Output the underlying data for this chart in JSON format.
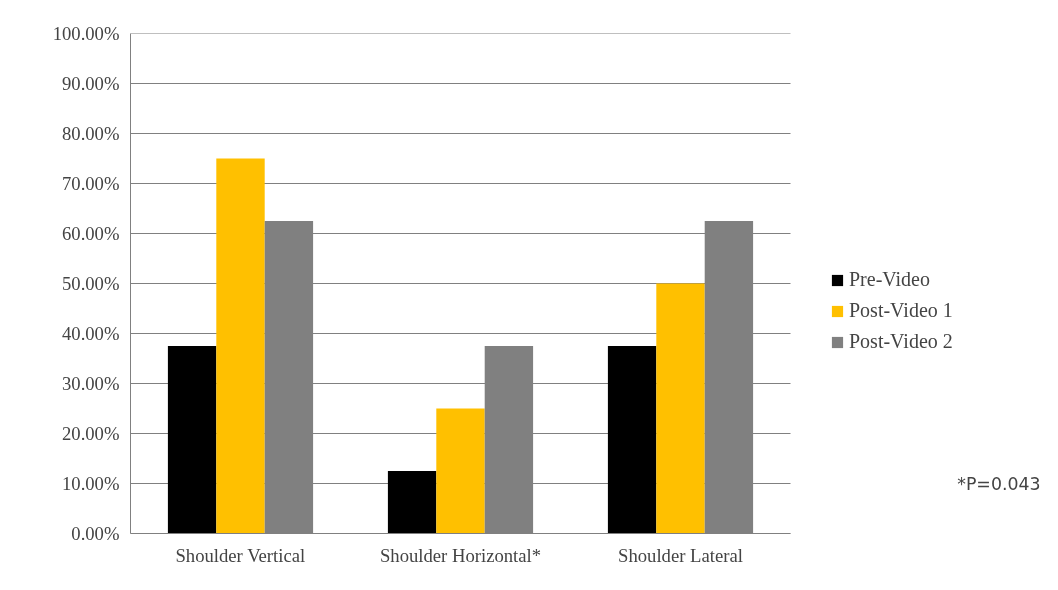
{
  "chart_data": {
    "type": "bar",
    "categories": [
      "Shoulder Vertical",
      "Shoulder Horizontal*",
      "Shoulder Lateral"
    ],
    "series": [
      {
        "name": "Pre-Video",
        "color": "#000000",
        "values": [
          37.5,
          12.5,
          37.5
        ]
      },
      {
        "name": "Post-Video 1",
        "color": "#ffc000",
        "values": [
          75,
          25,
          50
        ]
      },
      {
        "name": "Post-Video 2",
        "color": "#808080",
        "values": [
          62.5,
          37.5,
          62.5
        ]
      }
    ],
    "ylim": [
      0,
      100
    ],
    "yticks": [
      {
        "value": 0,
        "label": "0.00%"
      },
      {
        "value": 10,
        "label": "10.00%"
      },
      {
        "value": 20,
        "label": "20.00%"
      },
      {
        "value": 30,
        "label": "30.00%"
      },
      {
        "value": 40,
        "label": "40.00%"
      },
      {
        "value": 50,
        "label": "50.00%"
      },
      {
        "value": 60,
        "label": "60.00%"
      },
      {
        "value": 70,
        "label": "70.00%"
      },
      {
        "value": 80,
        "label": "80.00%"
      },
      {
        "value": 90,
        "label": "90.00%"
      },
      {
        "value": 100,
        "label": "100.00%"
      }
    ],
    "grid": "y",
    "legend": "right",
    "annotations": [
      "*P=0.043"
    ]
  }
}
